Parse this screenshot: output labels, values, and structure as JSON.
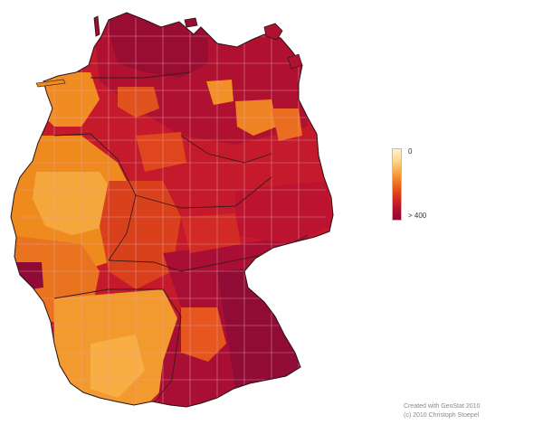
{
  "legend": {
    "min_label": "0",
    "max_label": "> 400",
    "gradient": [
      "#fff4c8",
      "#fdd98a",
      "#f9a441",
      "#ef6a1d",
      "#d8361b",
      "#b3122a",
      "#8e0a30"
    ]
  },
  "credits": {
    "line1": "Created with GeoStat 2010",
    "line2": "(c) 2010 Christoph Stoepel"
  },
  "colors": {
    "district_borders": "#e8a0a8",
    "state_borders": "#3a1a1a",
    "palette": {
      "very_light": "#fce2a0",
      "light_orange": "#f9a43a",
      "orange": "#f28a1c",
      "dark_orange": "#e2591e",
      "red": "#c8182d",
      "crimson": "#ad0f31",
      "dark_crimson": "#8f0b36"
    }
  }
}
